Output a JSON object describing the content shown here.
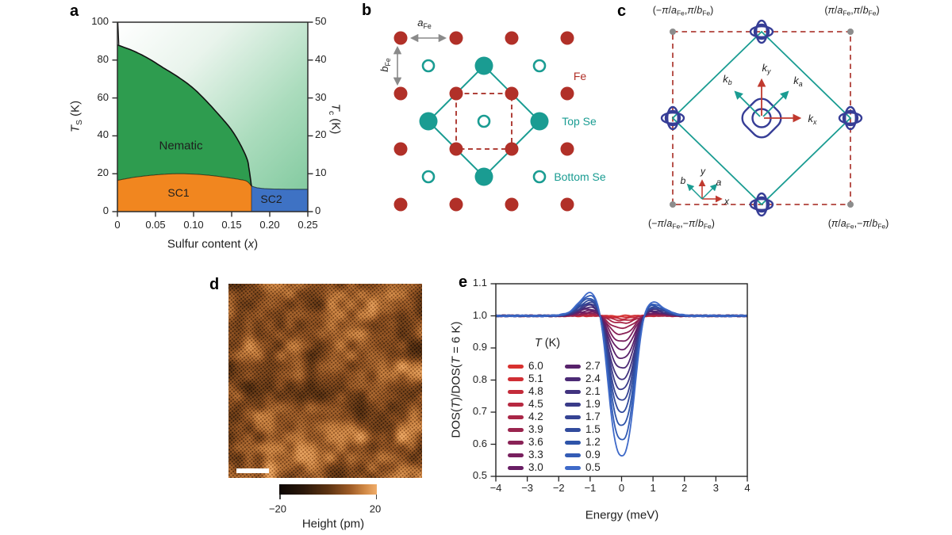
{
  "panels": {
    "a": {
      "letter": "a"
    },
    "b": {
      "letter": "b"
    },
    "c": {
      "letter": "c"
    },
    "d": {
      "letter": "d"
    },
    "e": {
      "letter": "e"
    }
  },
  "panel_a": {
    "region_labels": {
      "nematic": "Nematic",
      "sc1": "SC1",
      "sc2": "SC2"
    },
    "xlabel_rich": [
      {
        "t": "Sulfur content ("
      },
      {
        "t": "x",
        "i": 1
      },
      {
        "t": ")"
      }
    ],
    "ylabel_left_rich": [
      {
        "t": "T",
        "i": 1
      },
      {
        "t": "S",
        "sub": 1
      },
      {
        "t": " (K)"
      }
    ],
    "ylabel_right_rich": [
      {
        "t": "T",
        "i": 1
      },
      {
        "t": "c",
        "sub": 1
      },
      {
        "t": " (K)"
      }
    ]
  },
  "panel_b": {
    "labels": {
      "fe": "Fe",
      "top_se": "Top Se",
      "bottom_se": "Bottom Se"
    },
    "a_fe_rich": [
      {
        "t": "a",
        "i": 1
      },
      {
        "t": "Fe",
        "sub": 1
      }
    ],
    "b_fe_rich": [
      {
        "t": "b",
        "i": 1
      },
      {
        "t": "Fe",
        "sub": 1
      }
    ],
    "colors": {
      "fe": "#b13028",
      "se": "#1a9c92"
    }
  },
  "panel_c": {
    "corners": {
      "tl": [
        {
          "t": "(−"
        },
        {
          "t": "π",
          "i": 1
        },
        {
          "t": "/"
        },
        {
          "t": "a",
          "i": 1
        },
        {
          "t": "Fe",
          "sub": 1
        },
        {
          "t": ","
        },
        {
          "t": "π",
          "i": 1
        },
        {
          "t": "/"
        },
        {
          "t": "b",
          "i": 1
        },
        {
          "t": "Fe",
          "sub": 1
        },
        {
          "t": ")"
        }
      ],
      "tr": [
        {
          "t": "("
        },
        {
          "t": "π",
          "i": 1
        },
        {
          "t": "/"
        },
        {
          "t": "a",
          "i": 1
        },
        {
          "t": "Fe",
          "sub": 1
        },
        {
          "t": ","
        },
        {
          "t": "π",
          "i": 1
        },
        {
          "t": "/"
        },
        {
          "t": "b",
          "i": 1
        },
        {
          "t": "Fe",
          "sub": 1
        },
        {
          "t": ")"
        }
      ],
      "bl": [
        {
          "t": "(−"
        },
        {
          "t": "π",
          "i": 1
        },
        {
          "t": "/"
        },
        {
          "t": "a",
          "i": 1
        },
        {
          "t": "Fe",
          "sub": 1
        },
        {
          "t": ",−"
        },
        {
          "t": "π",
          "i": 1
        },
        {
          "t": "/"
        },
        {
          "t": "b",
          "i": 1
        },
        {
          "t": "Fe",
          "sub": 1
        },
        {
          "t": ")"
        }
      ],
      "br": [
        {
          "t": "("
        },
        {
          "t": "π",
          "i": 1
        },
        {
          "t": "/"
        },
        {
          "t": "a",
          "i": 1
        },
        {
          "t": "Fe",
          "sub": 1
        },
        {
          "t": ",−"
        },
        {
          "t": "π",
          "i": 1
        },
        {
          "t": "/"
        },
        {
          "t": "b",
          "i": 1
        },
        {
          "t": "Fe",
          "sub": 1
        },
        {
          "t": ")"
        }
      ]
    },
    "k_labels": {
      "ky": [
        {
          "t": "k",
          "i": 1
        },
        {
          "t": "y",
          "i": 1,
          "sub": 1
        }
      ],
      "kx": [
        {
          "t": "k",
          "i": 1
        },
        {
          "t": "x",
          "i": 1,
          "sub": 1
        }
      ],
      "ka": [
        {
          "t": "k",
          "i": 1
        },
        {
          "t": "a",
          "i": 1,
          "sub": 1
        }
      ],
      "kb": [
        {
          "t": "k",
          "i": 1
        },
        {
          "t": "b",
          "i": 1,
          "sub": 1
        }
      ]
    },
    "axes_labels": {
      "x": [
        {
          "t": "x",
          "i": 1
        }
      ],
      "y": [
        {
          "t": "y",
          "i": 1
        }
      ],
      "a": [
        {
          "t": "a",
          "i": 1
        }
      ],
      "b": [
        {
          "t": "b",
          "i": 1
        }
      ]
    }
  },
  "panel_d": {
    "colorbar": {
      "min_label": "−20",
      "max_label": "20",
      "title": "Height (pm)"
    }
  },
  "panel_e": {
    "xlabel": "Energy (meV)",
    "ylabel_rich": [
      {
        "t": "DOS("
      },
      {
        "t": "T",
        "i": 1
      },
      {
        "t": ")/DOS("
      },
      {
        "t": "T",
        "i": 1
      },
      {
        "t": " = 6 K)"
      }
    ],
    "legend_title_rich": [
      {
        "t": "T",
        "i": 1
      },
      {
        "t": " (K)"
      }
    ]
  },
  "chart_data": [
    {
      "id": "a",
      "type": "area",
      "title": "Phase diagram vs sulfur content",
      "xlabel": "Sulfur content (x)",
      "ylabel_left": "T_S (K)",
      "ylabel_right": "T_c (K)",
      "x_range": [
        0,
        0.25
      ],
      "y_left_range": [
        0,
        100
      ],
      "y_right_range": [
        0,
        50
      ],
      "x_ticks": [
        "0",
        "0.05",
        "0.10",
        "0.15",
        "0.20",
        "0.25"
      ],
      "y_ticks_left": [
        "0",
        "20",
        "40",
        "60",
        "80",
        "100"
      ],
      "y_ticks_right": [
        "0",
        "10",
        "20",
        "30",
        "40",
        "50"
      ],
      "regions": [
        {
          "name": "Nematic",
          "color": "#2e9c4f"
        },
        {
          "name": "SC1",
          "color": "#f1861f"
        },
        {
          "name": "SC2",
          "color": "#3e72c4"
        }
      ],
      "gradient_colors": [
        "#ffffff",
        "#e9f4ec",
        "#abdcbd",
        "#7cc79b"
      ],
      "nematic_boundary_TS": [
        [
          0,
          88
        ],
        [
          0.02,
          85
        ],
        [
          0.04,
          81
        ],
        [
          0.06,
          76
        ],
        [
          0.08,
          71
        ],
        [
          0.1,
          65
        ],
        [
          0.12,
          57
        ],
        [
          0.14,
          48
        ],
        [
          0.15,
          43
        ],
        [
          0.16,
          36.5
        ],
        [
          0.17,
          28
        ],
        [
          0.173,
          22
        ],
        [
          0.176,
          13.5
        ]
      ],
      "sc1_boundary_TS": [
        [
          0,
          16.5
        ],
        [
          0.02,
          18
        ],
        [
          0.04,
          19
        ],
        [
          0.06,
          19.7
        ],
        [
          0.08,
          20
        ],
        [
          0.1,
          19.8
        ],
        [
          0.12,
          19.2
        ],
        [
          0.14,
          18.2
        ],
        [
          0.16,
          17
        ],
        [
          0.17,
          16
        ],
        [
          0.176,
          13.5
        ]
      ],
      "sc2_boundary_TS": [
        [
          0.176,
          13.5
        ],
        [
          0.185,
          12.5
        ],
        [
          0.2,
          12
        ],
        [
          0.225,
          11.8
        ],
        [
          0.25,
          11.8
        ]
      ],
      "sc1_sc2_boundary_x": 0.176
    },
    {
      "id": "e",
      "type": "line",
      "title": "Normalized density of states vs energy",
      "xlabel": "Energy (meV)",
      "ylabel": "DOS(T)/DOS(T = 6 K)",
      "x_range": [
        -4,
        4
      ],
      "y_range": [
        0.5,
        1.1
      ],
      "x_ticks": [
        -4,
        -3,
        -2,
        -1,
        0,
        1,
        2,
        3,
        4
      ],
      "y_ticks": [
        0.5,
        0.6,
        0.7,
        0.8,
        0.9,
        1.0,
        1.1
      ],
      "legend_title": "T (K)",
      "series": [
        {
          "T": "6.0",
          "color": "#d8312f",
          "dos_min": 1.0
        },
        {
          "T": "5.1",
          "color": "#d02e34",
          "dos_min": 0.997
        },
        {
          "T": "4.8",
          "color": "#c42b3a",
          "dos_min": 0.992
        },
        {
          "T": "4.5",
          "color": "#b72941",
          "dos_min": 0.986
        },
        {
          "T": "4.2",
          "color": "#a92647",
          "dos_min": 0.977
        },
        {
          "T": "3.9",
          "color": "#9a244e",
          "dos_min": 0.961
        },
        {
          "T": "3.6",
          "color": "#892256",
          "dos_min": 0.942
        },
        {
          "T": "3.3",
          "color": "#781f5e",
          "dos_min": 0.92
        },
        {
          "T": "3.0",
          "color": "#681e64",
          "dos_min": 0.895
        },
        {
          "T": "2.7",
          "color": "#58226b",
          "dos_min": 0.866
        },
        {
          "T": "2.4",
          "color": "#4b2a75",
          "dos_min": 0.834
        },
        {
          "T": "2.1",
          "color": "#41337f",
          "dos_min": 0.799
        },
        {
          "T": "1.9",
          "color": "#3a3b89",
          "dos_min": 0.767
        },
        {
          "T": "1.7",
          "color": "#354393",
          "dos_min": 0.733
        },
        {
          "T": "1.5",
          "color": "#314b9d",
          "dos_min": 0.697
        },
        {
          "T": "1.2",
          "color": "#2e54a9",
          "dos_min": 0.654
        },
        {
          "T": "0.9",
          "color": "#335cb5",
          "dos_min": 0.607
        },
        {
          "T": "0.5",
          "color": "#3e69c8",
          "dos_min": 0.557
        }
      ],
      "model": {
        "dip_center": 0,
        "dip_width": 0.52,
        "dip_power": 2.6,
        "peak_left": {
          "center": -0.95,
          "width": 0.55,
          "scale": 0.165
        },
        "peak_right": {
          "center": 0.92,
          "width": 0.58,
          "scale": 0.1
        }
      }
    },
    {
      "id": "d",
      "type": "heatmap",
      "title": "STM topography",
      "colorbar": {
        "label": "Height (pm)",
        "min": -20,
        "max": 20
      }
    }
  ]
}
